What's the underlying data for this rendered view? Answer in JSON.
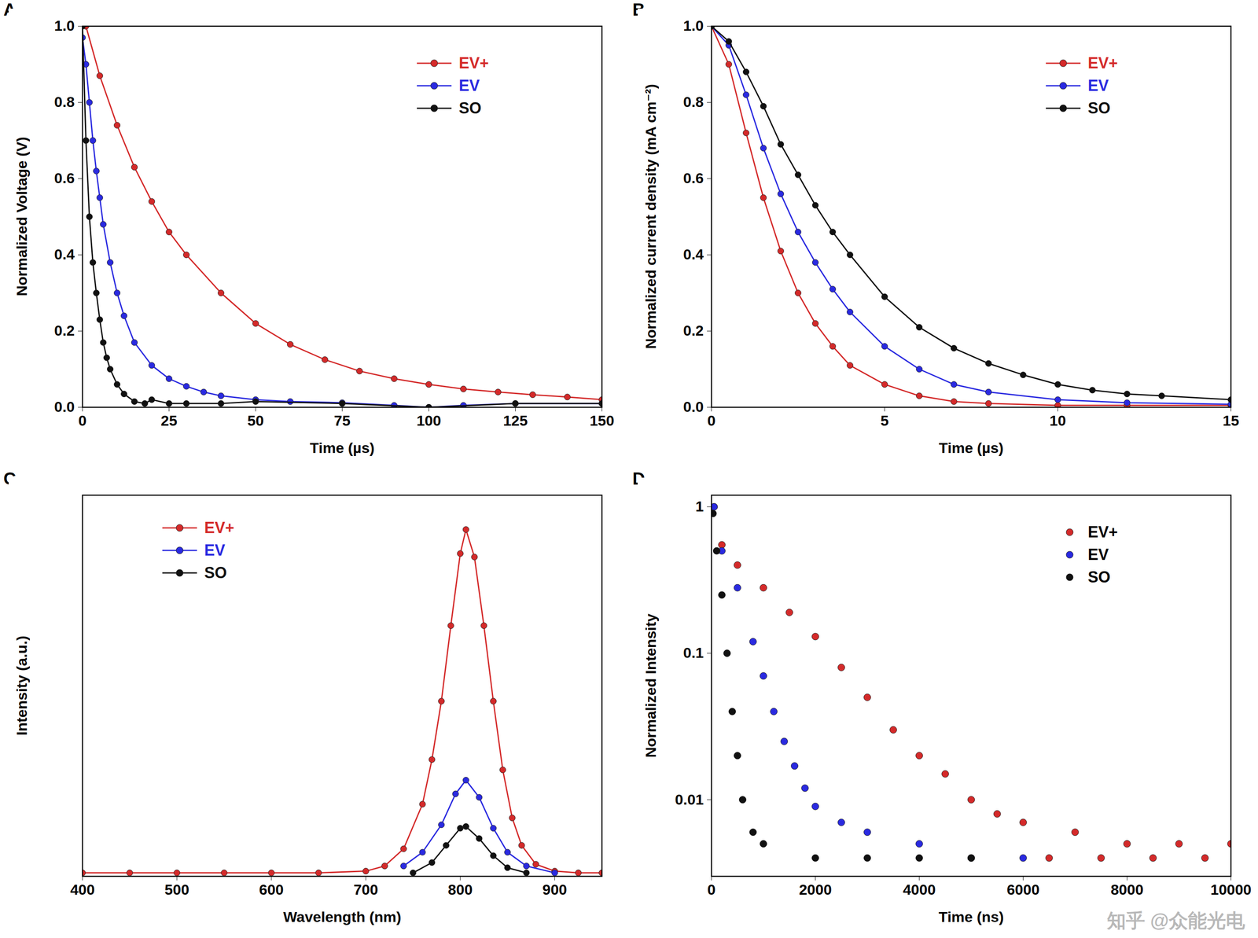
{
  "chart_data": [
    {
      "type": "line",
      "title": "A",
      "x_label": "Time (µs)",
      "y_label": "Normalized Voltage (V)",
      "xlim": [
        0,
        150
      ],
      "xticks": [
        0,
        25,
        50,
        75,
        100,
        125,
        150
      ],
      "ylim": [
        0,
        1.0
      ],
      "yticks": [
        {
          "value": 0,
          "label": "0.0"
        },
        {
          "value": 0.2,
          "label": "0.2"
        },
        {
          "value": 0.4,
          "label": "0.4"
        },
        {
          "value": 0.6,
          "label": "0.6"
        },
        {
          "value": 0.8,
          "label": "0.8"
        },
        {
          "value": 1.0,
          "label": "1.0"
        }
      ],
      "legend": "top-right",
      "marker": "circle",
      "line_style": "solid",
      "series": [
        {
          "name": "EV+",
          "color": "#d42a2a",
          "x": [
            1,
            5,
            10,
            15,
            20,
            25,
            30,
            40,
            50,
            60,
            70,
            80,
            90,
            100,
            110,
            120,
            130,
            140,
            150
          ],
          "values": [
            1.0,
            0.87,
            0.74,
            0.63,
            0.54,
            0.46,
            0.4,
            0.3,
            0.22,
            0.165,
            0.125,
            0.095,
            0.075,
            0.06,
            0.048,
            0.04,
            0.033,
            0.027,
            0.02
          ]
        },
        {
          "name": "EV",
          "color": "#2a2ae0",
          "x": [
            0,
            1,
            2,
            3,
            4,
            5,
            6,
            8,
            10,
            12,
            15,
            20,
            25,
            30,
            35,
            40,
            50,
            60,
            75,
            90,
            100,
            110,
            125,
            150
          ],
          "values": [
            0.97,
            0.9,
            0.8,
            0.7,
            0.62,
            0.55,
            0.48,
            0.38,
            0.3,
            0.24,
            0.17,
            0.11,
            0.075,
            0.055,
            0.04,
            0.03,
            0.02,
            0.015,
            0.012,
            0.005,
            0.0,
            0.005,
            0.01,
            0.01
          ]
        },
        {
          "name": "SO",
          "color": "#111111",
          "x": [
            0,
            1,
            2,
            3,
            4,
            5,
            6,
            7,
            8,
            10,
            12,
            15,
            18,
            20,
            25,
            30,
            40,
            50,
            75,
            100,
            125,
            150
          ],
          "values": [
            1.0,
            0.7,
            0.5,
            0.38,
            0.3,
            0.23,
            0.17,
            0.13,
            0.1,
            0.06,
            0.035,
            0.015,
            0.01,
            0.02,
            0.01,
            0.01,
            0.01,
            0.015,
            0.01,
            0.0,
            0.01,
            0.01
          ]
        }
      ]
    },
    {
      "type": "line",
      "title": "B",
      "x_label": "Time (µs)",
      "y_label": "Normalized current density (mA cm⁻²)",
      "xlim": [
        0,
        15
      ],
      "xticks": [
        0,
        5,
        10,
        15
      ],
      "ylim": [
        0,
        1.0
      ],
      "yticks": [
        {
          "value": 0,
          "label": "0.0"
        },
        {
          "value": 0.2,
          "label": "0.2"
        },
        {
          "value": 0.4,
          "label": "0.4"
        },
        {
          "value": 0.6,
          "label": "0.6"
        },
        {
          "value": 0.8,
          "label": "0.8"
        },
        {
          "value": 1.0,
          "label": "1.0"
        }
      ],
      "legend": "top-right",
      "marker": "circle",
      "line_style": "solid",
      "series": [
        {
          "name": "EV+",
          "color": "#d42a2a",
          "x": [
            0,
            0.5,
            1,
            1.5,
            2,
            2.5,
            3,
            3.5,
            4,
            5,
            6,
            7,
            8,
            10,
            12,
            15
          ],
          "values": [
            1.0,
            0.9,
            0.72,
            0.55,
            0.41,
            0.3,
            0.22,
            0.16,
            0.11,
            0.06,
            0.03,
            0.015,
            0.01,
            0.005,
            0.005,
            0.005
          ]
        },
        {
          "name": "EV",
          "color": "#2a2ae0",
          "x": [
            0,
            0.5,
            1,
            1.5,
            2,
            2.5,
            3,
            3.5,
            4,
            5,
            6,
            7,
            8,
            10,
            12,
            15
          ],
          "values": [
            1.0,
            0.95,
            0.82,
            0.68,
            0.56,
            0.46,
            0.38,
            0.31,
            0.25,
            0.16,
            0.1,
            0.06,
            0.04,
            0.02,
            0.012,
            0.008
          ]
        },
        {
          "name": "SO",
          "color": "#111111",
          "x": [
            0,
            0.5,
            1,
            1.5,
            2,
            2.5,
            3,
            3.5,
            4,
            5,
            6,
            7,
            8,
            9,
            10,
            11,
            12,
            13,
            15
          ],
          "values": [
            1.0,
            0.96,
            0.88,
            0.79,
            0.69,
            0.61,
            0.53,
            0.46,
            0.4,
            0.29,
            0.21,
            0.155,
            0.115,
            0.085,
            0.06,
            0.045,
            0.035,
            0.03,
            0.02
          ]
        }
      ]
    },
    {
      "type": "line",
      "title": "C",
      "x_label": "Wavelength (nm)",
      "y_label": "Intensity (a.u.)",
      "xlim": [
        400,
        950
      ],
      "xticks": [
        400,
        500,
        600,
        700,
        800,
        900
      ],
      "ylim": [
        -0.01,
        1.1
      ],
      "tick_labels": "x",
      "legend": "top-left",
      "marker": "circle",
      "line_style": "solid",
      "series": [
        {
          "name": "EV+",
          "color": "#d42a2a",
          "x": [
            400,
            450,
            500,
            550,
            600,
            650,
            700,
            720,
            740,
            760,
            770,
            780,
            790,
            800,
            806,
            815,
            825,
            835,
            845,
            855,
            865,
            880,
            900,
            925,
            950
          ],
          "values": [
            0,
            0,
            0,
            0,
            0,
            0,
            0.005,
            0.02,
            0.07,
            0.2,
            0.33,
            0.5,
            0.72,
            0.93,
            1.0,
            0.92,
            0.72,
            0.5,
            0.3,
            0.16,
            0.08,
            0.025,
            0.005,
            0,
            0
          ]
        },
        {
          "name": "EV",
          "color": "#2a2ae0",
          "x": [
            740,
            760,
            780,
            795,
            806,
            820,
            835,
            850,
            870,
            900
          ],
          "values": [
            0.02,
            0.06,
            0.14,
            0.23,
            0.27,
            0.22,
            0.13,
            0.06,
            0.02,
            0
          ]
        },
        {
          "name": "SO",
          "color": "#111111",
          "x": [
            750,
            770,
            785,
            800,
            806,
            820,
            835,
            850,
            870
          ],
          "values": [
            0,
            0.03,
            0.08,
            0.13,
            0.135,
            0.1,
            0.05,
            0.015,
            0
          ]
        }
      ]
    },
    {
      "type": "scatter",
      "title": "D",
      "x_label": "Time (ns)",
      "y_label": "Normalized Intensity",
      "xlim": [
        0,
        10000
      ],
      "xticks": [
        0,
        2000,
        4000,
        6000,
        8000,
        10000
      ],
      "ylim": [
        0.003,
        1.2
      ],
      "yticks": [
        0.01,
        0.1,
        1
      ],
      "log": "y",
      "legend": "top-right",
      "marker": "circle",
      "annotations": [
        "知乎 @众能光电"
      ],
      "series": [
        {
          "name": "EV+",
          "color": "#d42a2a",
          "x": [
            50,
            200,
            500,
            1000,
            1500,
            2000,
            2500,
            3000,
            3500,
            4000,
            4500,
            5000,
            5500,
            6000,
            7000,
            8000,
            9000,
            10000,
            5000,
            6500,
            7500,
            8500,
            9500
          ],
          "values": [
            1.0,
            0.55,
            0.4,
            0.28,
            0.19,
            0.13,
            0.08,
            0.05,
            0.03,
            0.02,
            0.015,
            0.01,
            0.008,
            0.007,
            0.006,
            0.005,
            0.005,
            0.005,
            0.004,
            0.004,
            0.004,
            0.004,
            0.004
          ]
        },
        {
          "name": "EV",
          "color": "#2a2ae0",
          "x": [
            50,
            200,
            500,
            800,
            1000,
            1200,
            1400,
            1600,
            1800,
            2000,
            2500,
            3000,
            4000,
            5000,
            6000
          ],
          "values": [
            1.0,
            0.5,
            0.28,
            0.12,
            0.07,
            0.04,
            0.025,
            0.017,
            0.012,
            0.009,
            0.007,
            0.006,
            0.005,
            0.004,
            0.004
          ]
        },
        {
          "name": "SO",
          "color": "#111111",
          "x": [
            30,
            100,
            200,
            300,
            400,
            500,
            600,
            800,
            1000,
            2000,
            3000,
            4000,
            5000
          ],
          "values": [
            0.9,
            0.5,
            0.25,
            0.1,
            0.04,
            0.02,
            0.01,
            0.006,
            0.005,
            0.004,
            0.004,
            0.004,
            0.004
          ]
        }
      ]
    }
  ]
}
